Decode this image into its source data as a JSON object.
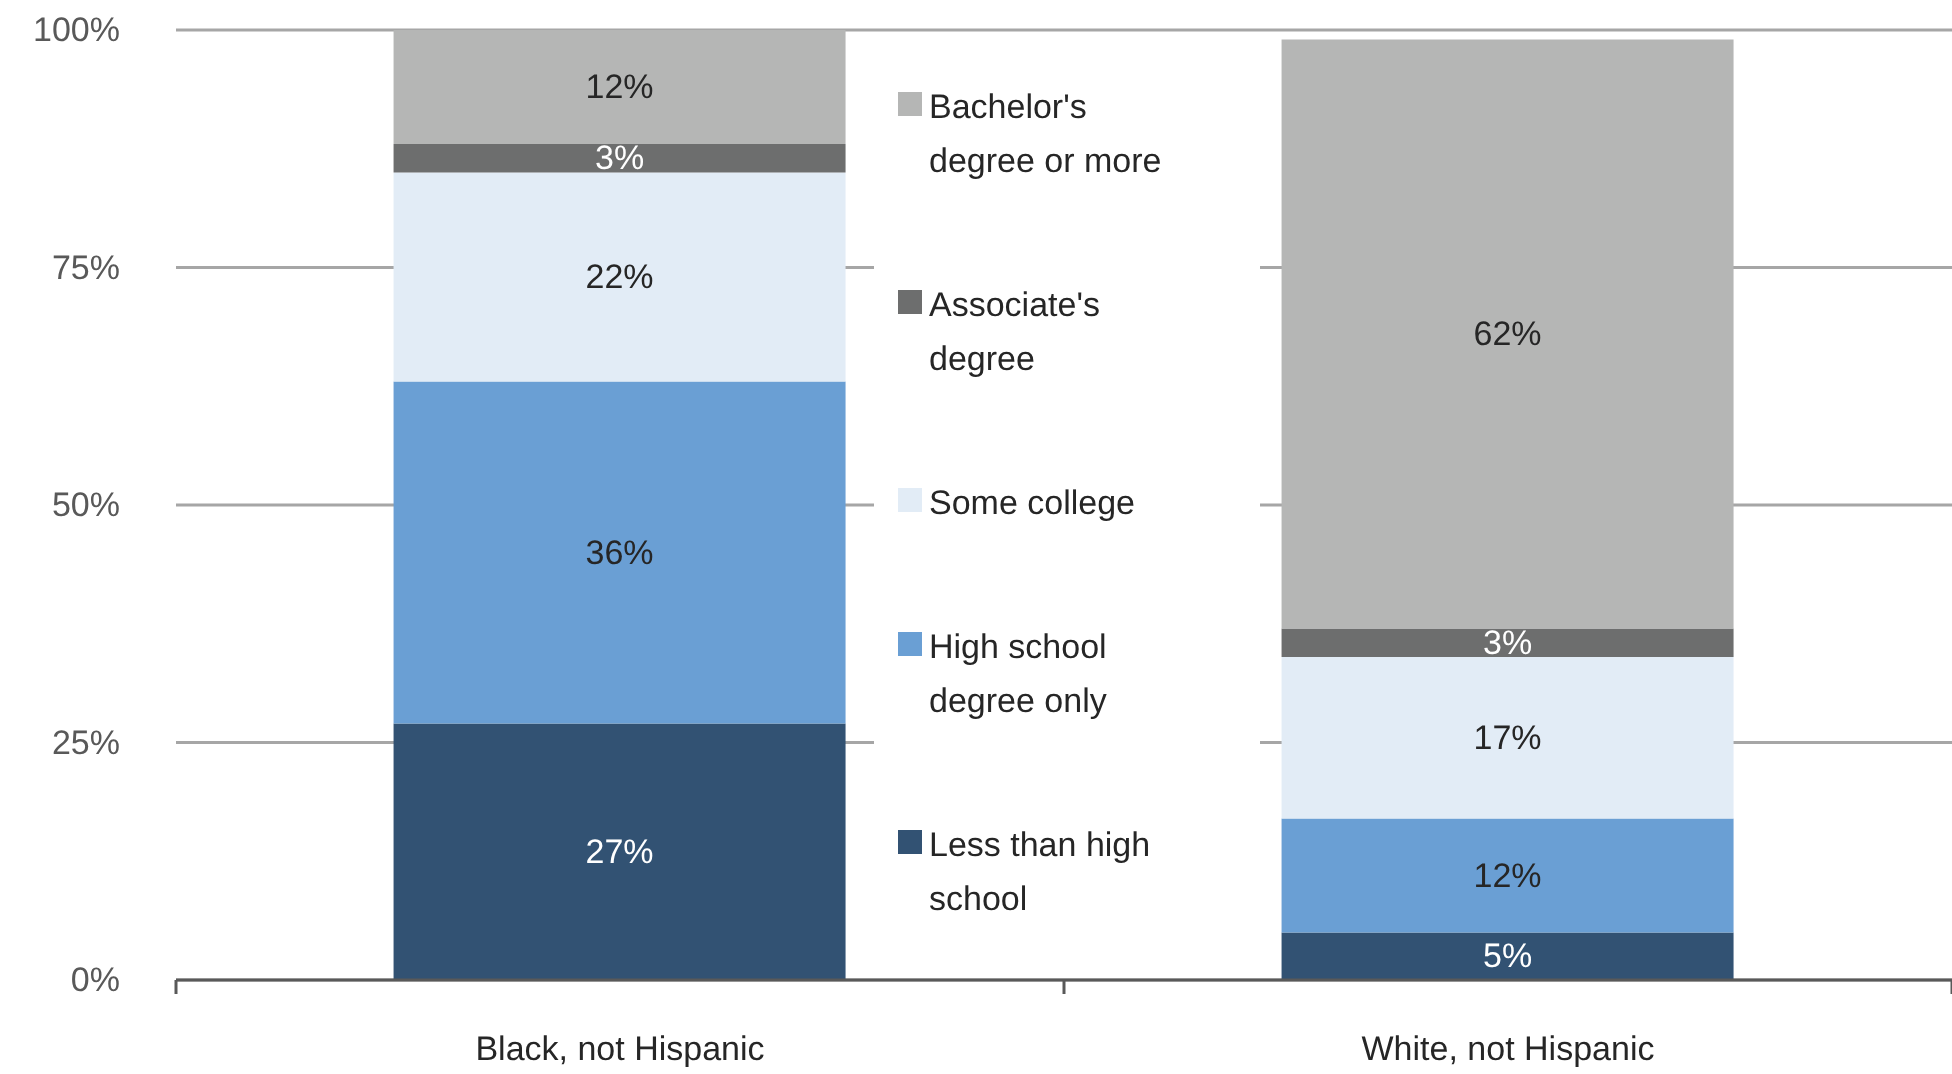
{
  "chart_data": {
    "type": "bar",
    "stacked": true,
    "categories": [
      "Black, not Hispanic",
      "White, not Hispanic"
    ],
    "series": [
      {
        "name": "Less than high school",
        "color": "#325273",
        "values": [
          27,
          5
        ],
        "value_labels": [
          "27%",
          "5%"
        ]
      },
      {
        "name": "High school degree only",
        "color": "#6a9fd4",
        "values": [
          36,
          12
        ],
        "value_labels": [
          "36%",
          "12%"
        ]
      },
      {
        "name": "Some college",
        "color": "#e2ecf6",
        "values": [
          22,
          17
        ],
        "value_labels": [
          "22%",
          "17%"
        ]
      },
      {
        "name": "Associate's degree",
        "color": "#6d6e6e",
        "values": [
          3,
          3
        ],
        "value_labels": [
          "3%",
          "3%"
        ]
      },
      {
        "name": "Bachelor's degree or more",
        "color": "#b5b6b5",
        "values": [
          12,
          62
        ],
        "value_labels": [
          "12%",
          "62%"
        ]
      }
    ],
    "ylim": [
      0,
      100
    ],
    "yticks": [
      {
        "value": 0,
        "label": "0%"
      },
      {
        "value": 25,
        "label": "25%"
      },
      {
        "value": 50,
        "label": "50%"
      },
      {
        "value": 75,
        "label": "75%"
      },
      {
        "value": 100,
        "label": "100%"
      }
    ],
    "grid": "y",
    "legend": "center"
  }
}
